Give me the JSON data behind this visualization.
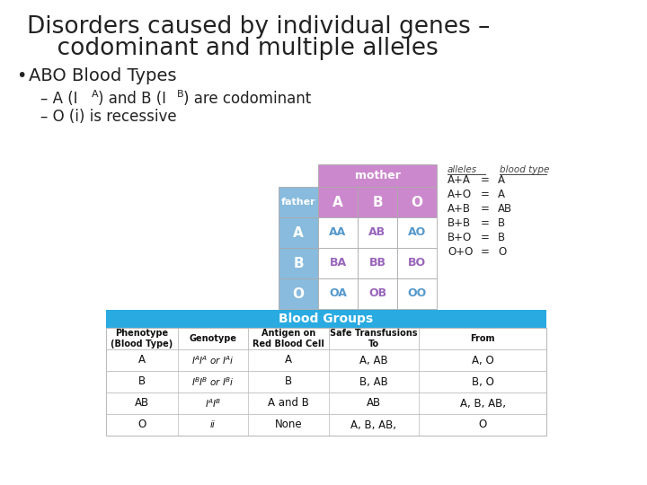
{
  "title_line1": "Disorders caused by individual genes –",
  "title_line2": "    codominant and multiple alleles",
  "bullet": "ABO Blood Types",
  "sub2": "– O (i) is recessive",
  "bg_color": "#ffffff",
  "title_color": "#222222",
  "text_color": "#222222",
  "punnett_header_mother_bg": "#cc88cc",
  "punnett_header_father_bg": "#88bbdd",
  "punnett_row_bg": "#88bbdd",
  "punnett_border": "#aaaaaa",
  "punnett_data": [
    [
      "AA",
      "AB",
      "AO"
    ],
    [
      "BA",
      "BB",
      "BO"
    ],
    [
      "OA",
      "OB",
      "OO"
    ]
  ],
  "punnett_rows": [
    "A",
    "B",
    "O"
  ],
  "punnett_cols": [
    "A",
    "B",
    "O"
  ],
  "alleles_eqs": [
    [
      "A+A",
      "=",
      "A"
    ],
    [
      "A+O",
      "=",
      "A"
    ],
    [
      "A+B",
      "=",
      "AB"
    ],
    [
      "B+B",
      "=",
      "B"
    ],
    [
      "B+O",
      "=",
      "B"
    ],
    [
      "O+O",
      "=",
      "O"
    ]
  ],
  "bg_table_rows": [
    [
      "A",
      "I$^A$I$^A$ or I$^A$i",
      "A",
      "A, AB",
      "A, O"
    ],
    [
      "B",
      "I$^B$I$^B$ or I$^B$i",
      "B",
      "B, AB",
      "B, O"
    ],
    [
      "AB",
      "I$^A$I$^B$",
      "A and B",
      "AB",
      "A, B, AB,"
    ],
    [
      "O",
      "ii",
      "None",
      "A, B, AB,",
      "O"
    ]
  ],
  "blood_groups_header_bg": "#29abe2",
  "blood_groups_border": "#bbbbbb",
  "punnett_blue_text": "#5599cc",
  "punnett_purple_text": "#9966bb"
}
